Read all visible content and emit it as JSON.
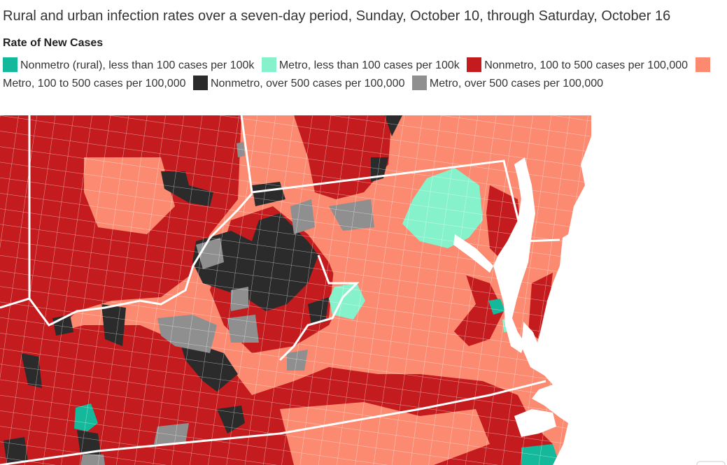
{
  "title": "Rural and urban infection rates over a seven-day period, Sunday, October 10, through Saturday, October 16",
  "legend_title": "Rate of New Cases",
  "legend": [
    {
      "label": "Nonmetro (rural), less than 100 cases per 100k",
      "color": "#14b89a"
    },
    {
      "label": "Metro, less than 100 cases per 100k",
      "color": "#86f2cc"
    },
    {
      "label": "Nonmetro, 100 to 500 cases per 100,000",
      "color": "#c41c1e"
    },
    {
      "label": "Metro, 100 to 500 cases per 100,000",
      "color": "#fb8a70"
    },
    {
      "label": "Nonmetro, over 500 cases per 100,000",
      "color": "#2b2b2b"
    },
    {
      "label": "Metro, over 500 cases per 100,000",
      "color": "#8f8f8f"
    }
  ],
  "map": {
    "water_color": "#ffffff",
    "state_border_color": "#ffffff"
  }
}
